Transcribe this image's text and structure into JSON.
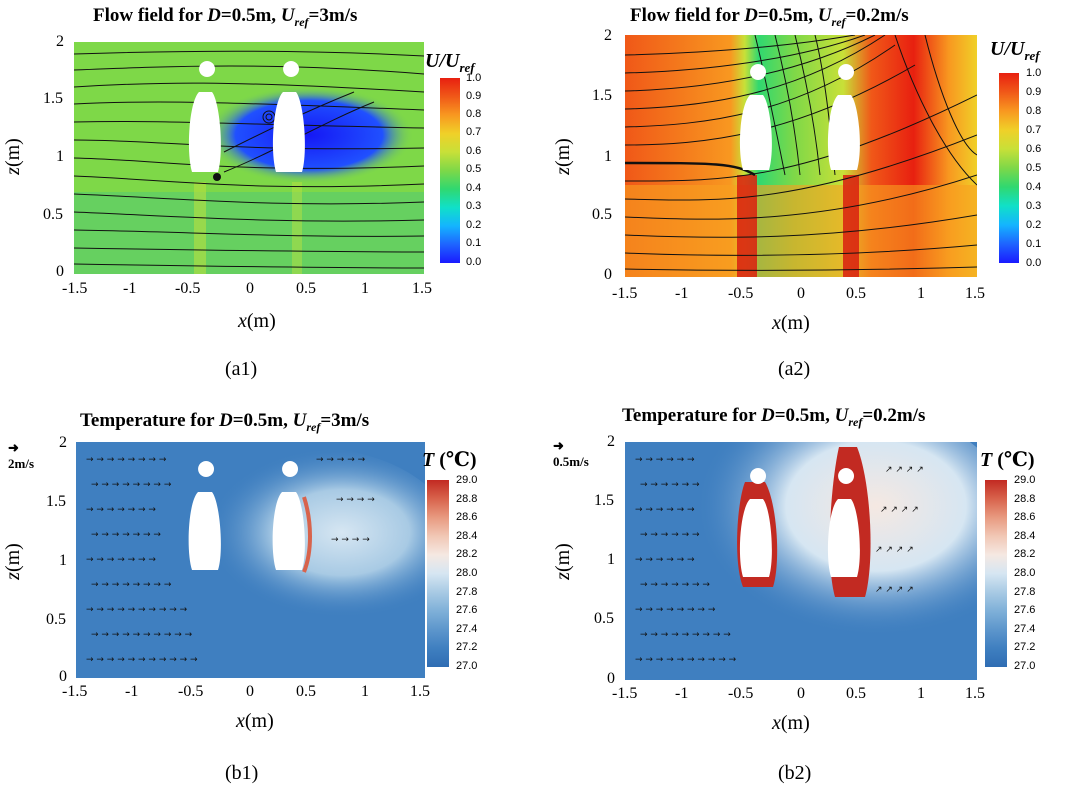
{
  "panels": [
    {
      "id": "a1",
      "title_pre": "Flow field for ",
      "title_D": "D",
      "title_mid": "=0.5m, ",
      "title_U": "U",
      "title_sub": "ref",
      "title_post": "=3m/s",
      "caption": "(a1)",
      "xlabel_var": "x",
      "xlabel_unit": "(m)",
      "ylabel_var": "z",
      "ylabel_unit": "(m)",
      "xticks": [
        "-1.5",
        "-1",
        "-0.5",
        "0",
        "0.5",
        "1",
        "1.5"
      ],
      "yticks": [
        "0",
        "0.5",
        "1",
        "1.5",
        "2"
      ],
      "colorbar_title": "U/U",
      "colorbar_sub": "ref",
      "colorbar_ticks": [
        "1.0",
        "0.9",
        "0.8",
        "0.7",
        "0.6",
        "0.5",
        "0.4",
        "0.3",
        "0.2",
        "0.1",
        "0.0"
      ],
      "ref_arrow_label": ""
    },
    {
      "id": "a2",
      "title_pre": "Flow field for ",
      "title_D": "D",
      "title_mid": "=0.5m, ",
      "title_U": "U",
      "title_sub": "ref",
      "title_post": "=0.2m/s",
      "caption": "(a2)",
      "xlabel_var": "x",
      "xlabel_unit": "(m)",
      "ylabel_var": "z",
      "ylabel_unit": "(m)",
      "xticks": [
        "-1.5",
        "-1",
        "-0.5",
        "0",
        "0.5",
        "1",
        "1.5"
      ],
      "yticks": [
        "0",
        "0.5",
        "1",
        "1.5",
        "2"
      ],
      "colorbar_title": "U/U",
      "colorbar_sub": "ref",
      "colorbar_ticks": [
        "1.0",
        "0.9",
        "0.8",
        "0.7",
        "0.6",
        "0.5",
        "0.4",
        "0.3",
        "0.2",
        "0.1",
        "0.0"
      ],
      "ref_arrow_label": ""
    },
    {
      "id": "b1",
      "title_pre": "Temperature for ",
      "title_D": "D",
      "title_mid": "=0.5m, ",
      "title_U": "U",
      "title_sub": "ref",
      "title_post": "=3m/s",
      "caption": "(b1)",
      "xlabel_var": "x",
      "xlabel_unit": "(m)",
      "ylabel_var": "z",
      "ylabel_unit": "(m)",
      "xticks": [
        "-1.5",
        "-1",
        "-0.5",
        "0",
        "0.5",
        "1",
        "1.5"
      ],
      "yticks": [
        "0",
        "0.5",
        "1",
        "1.5",
        "2"
      ],
      "colorbar_title": "T",
      "colorbar_unit": " (℃)",
      "colorbar_ticks": [
        "29.0",
        "28.8",
        "28.6",
        "28.4",
        "28.2",
        "28.0",
        "27.8",
        "27.6",
        "27.4",
        "27.2",
        "27.0"
      ],
      "ref_arrow_label": "2m/s"
    },
    {
      "id": "b2",
      "title_pre": "Temperature for ",
      "title_D": "D",
      "title_mid": "=0.5m, ",
      "title_U": "U",
      "title_sub": "ref",
      "title_post": "=0.2m/s",
      "caption": "(b2)",
      "xlabel_var": "x",
      "xlabel_unit": "(m)",
      "ylabel_var": "z",
      "ylabel_unit": "(m)",
      "xticks": [
        "-1.5",
        "-1",
        "-0.5",
        "0",
        "0.5",
        "1",
        "1.5"
      ],
      "yticks": [
        "0",
        "0.5",
        "1",
        "1.5",
        "2"
      ],
      "colorbar_title": "T",
      "colorbar_unit": " (℃)",
      "colorbar_ticks": [
        "29.0",
        "28.8",
        "28.6",
        "28.4",
        "28.2",
        "28.0",
        "27.8",
        "27.6",
        "27.4",
        "27.2",
        "27.0"
      ],
      "ref_arrow_label": "0.5m/s"
    }
  ],
  "colors": {
    "velocity_scale": [
      "#1a1aff",
      "#1e64ff",
      "#14b4ff",
      "#10e0c8",
      "#30d870",
      "#7ed848",
      "#c8e038",
      "#f0d028",
      "#f89820",
      "#f05818",
      "#e82010"
    ],
    "temperature_scale": [
      "#2f6db3",
      "#3f7fc0",
      "#5d96cc",
      "#7fb0d8",
      "#a8cae4",
      "#d6e6f2",
      "#f5e8e2",
      "#f1c7b5",
      "#e89a80",
      "#d8634c",
      "#c22a22"
    ]
  }
}
